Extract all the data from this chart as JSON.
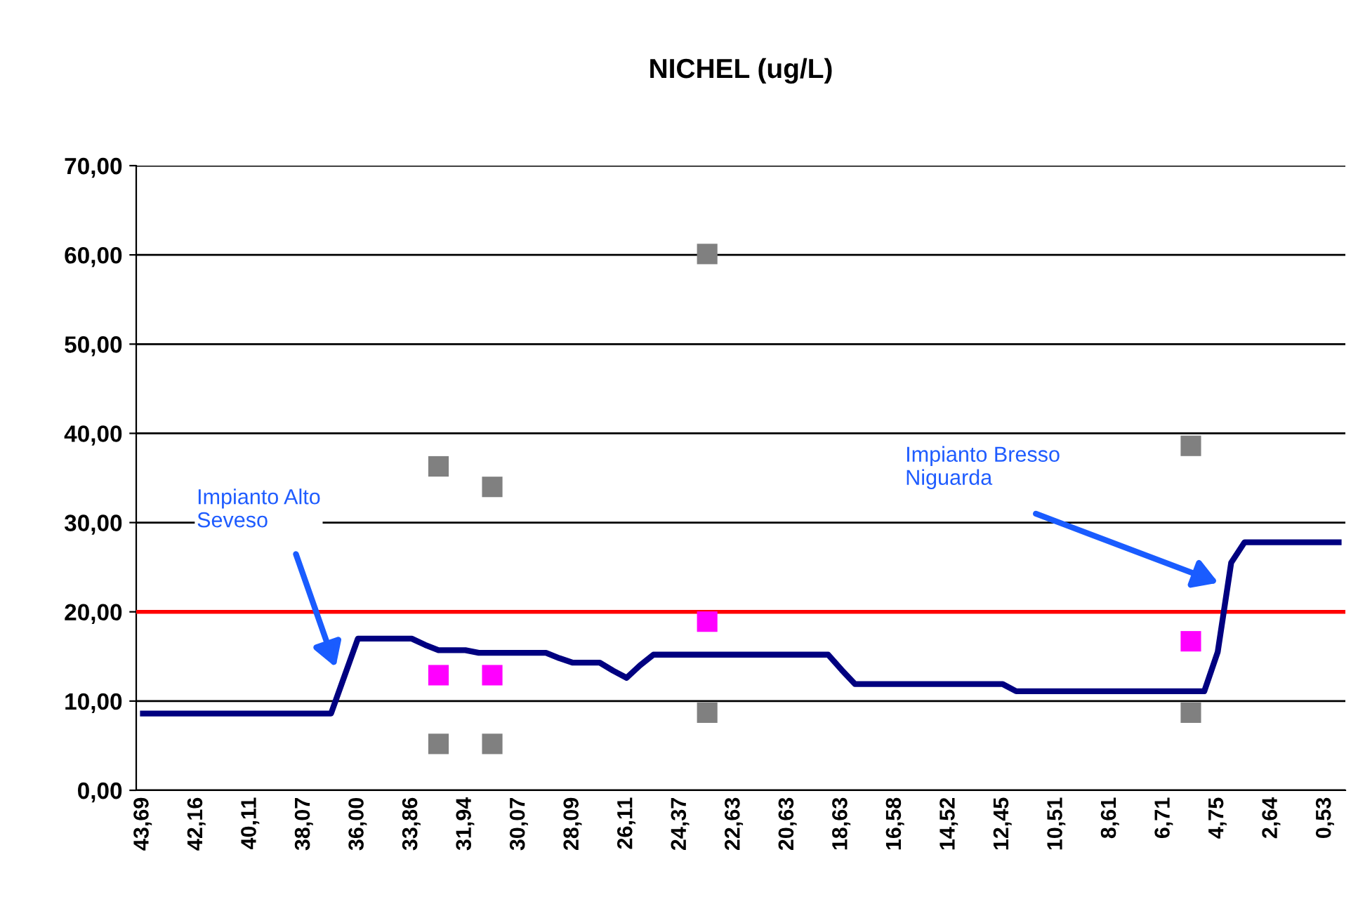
{
  "chart_data": {
    "type": "line",
    "title": "NICHEL (ug/L)",
    "categories": [
      "43,69",
      null,
      null,
      null,
      "42,16",
      null,
      null,
      null,
      "40,11",
      null,
      null,
      null,
      "38,07",
      null,
      null,
      null,
      "36,00",
      null,
      null,
      null,
      "33,86",
      null,
      null,
      null,
      "31,94",
      null,
      null,
      null,
      "30,07",
      null,
      null,
      null,
      "28,09",
      null,
      null,
      null,
      "26,11",
      null,
      null,
      null,
      "24,37",
      null,
      null,
      null,
      "22,63",
      null,
      null,
      null,
      "20,63",
      null,
      null,
      null,
      "18,63",
      null,
      null,
      null,
      "16,58",
      null,
      null,
      null,
      "14,52",
      null,
      null,
      null,
      "12,45",
      null,
      null,
      null,
      "10,51",
      null,
      null,
      null,
      "8,61",
      null,
      null,
      null,
      "6,71",
      null,
      null,
      null,
      "4,75",
      null,
      null,
      null,
      "2,64",
      null,
      null,
      null,
      "0,53",
      null
    ],
    "series": [
      {
        "color": "#000080",
        "marker": "none",
        "values": [
          8.6,
          8.6,
          8.6,
          8.6,
          8.6,
          8.6,
          8.6,
          8.6,
          8.6,
          8.6,
          8.6,
          8.6,
          8.6,
          8.6,
          8.6,
          12.8,
          17.0,
          17.0,
          17.0,
          17.0,
          17.0,
          16.3,
          15.7,
          15.7,
          15.7,
          15.4,
          15.4,
          15.4,
          15.4,
          15.4,
          15.4,
          14.8,
          14.3,
          14.3,
          14.3,
          13.4,
          12.6,
          14.0,
          15.2,
          15.2,
          15.2,
          15.2,
          15.2,
          15.2,
          15.2,
          15.2,
          15.2,
          15.2,
          15.2,
          15.2,
          15.2,
          15.2,
          13.5,
          11.9,
          11.9,
          11.9,
          11.9,
          11.9,
          11.9,
          11.9,
          11.9,
          11.9,
          11.9,
          11.9,
          11.9,
          11.1,
          11.1,
          11.1,
          11.1,
          11.1,
          11.1,
          11.1,
          11.1,
          11.1,
          11.1,
          11.1,
          11.1,
          11.1,
          11.1,
          11.1,
          15.5,
          25.5,
          27.8,
          27.8,
          27.8,
          27.8,
          27.8,
          27.8,
          27.8,
          27.8
        ]
      },
      {
        "type": "scatter",
        "color": "#808080",
        "marker": "square",
        "values": [
          null,
          null,
          null,
          null,
          null,
          null,
          null,
          null,
          null,
          null,
          null,
          null,
          null,
          null,
          null,
          null,
          null,
          null,
          null,
          null,
          null,
          null,
          36.3,
          null,
          null,
          null,
          34.0,
          null,
          null,
          null,
          null,
          null,
          null,
          null,
          null,
          null,
          null,
          null,
          null,
          null,
          null,
          null,
          60.1,
          null,
          null,
          null,
          null,
          null,
          null,
          null,
          null,
          null,
          null,
          null,
          null,
          null,
          null,
          null,
          null,
          null,
          null,
          null,
          null,
          null,
          null,
          null,
          null,
          null,
          null,
          null,
          null,
          null,
          null,
          null,
          null,
          null,
          null,
          null,
          38.6,
          null,
          null,
          null,
          null,
          null,
          null,
          null,
          null,
          null,
          null,
          null
        ]
      },
      {
        "type": "scatter",
        "color": "#808080",
        "marker": "square",
        "values": [
          null,
          null,
          null,
          null,
          null,
          null,
          null,
          null,
          null,
          null,
          null,
          null,
          null,
          null,
          null,
          null,
          null,
          null,
          null,
          null,
          null,
          null,
          5.2,
          null,
          null,
          null,
          5.2,
          null,
          null,
          null,
          null,
          null,
          null,
          null,
          null,
          null,
          null,
          null,
          null,
          null,
          null,
          null,
          8.7,
          null,
          null,
          null,
          null,
          null,
          null,
          null,
          null,
          null,
          null,
          null,
          null,
          null,
          null,
          null,
          null,
          null,
          null,
          null,
          null,
          null,
          null,
          null,
          null,
          null,
          null,
          null,
          null,
          null,
          null,
          null,
          null,
          null,
          null,
          null,
          8.7,
          null,
          null,
          null,
          null,
          null,
          null,
          null,
          null,
          null,
          null,
          null
        ]
      },
      {
        "type": "scatter",
        "color": "#ff00ff",
        "marker": "square",
        "values": [
          null,
          null,
          null,
          null,
          null,
          null,
          null,
          null,
          null,
          null,
          null,
          null,
          null,
          null,
          null,
          null,
          null,
          null,
          null,
          null,
          null,
          null,
          12.9,
          null,
          null,
          null,
          12.9,
          null,
          null,
          null,
          null,
          null,
          null,
          null,
          null,
          null,
          null,
          null,
          null,
          null,
          null,
          null,
          18.9,
          null,
          null,
          null,
          null,
          null,
          null,
          null,
          null,
          null,
          null,
          null,
          null,
          null,
          null,
          null,
          null,
          null,
          null,
          null,
          null,
          null,
          null,
          null,
          null,
          null,
          null,
          null,
          null,
          null,
          null,
          null,
          null,
          null,
          null,
          null,
          16.7,
          null,
          null,
          null,
          null,
          null,
          null,
          null,
          null,
          null,
          null,
          null
        ]
      }
    ],
    "ylim": [
      0,
      70
    ],
    "yticks": [
      {
        "value": 0,
        "label": "0,00"
      },
      {
        "value": 10,
        "label": "10,00"
      },
      {
        "value": 20,
        "label": "20,00"
      },
      {
        "value": 30,
        "label": "30,00"
      },
      {
        "value": 40,
        "label": "40,00"
      },
      {
        "value": 50,
        "label": "50,00"
      },
      {
        "value": 60,
        "label": "60,00"
      },
      {
        "value": 70,
        "label": "70,00"
      }
    ],
    "grid": "y",
    "ref_lines": [
      {
        "axis": "y",
        "value": 20,
        "color": "#ff0000"
      }
    ],
    "annotations": [
      "Impianto Alto\nSeveso",
      "Impianto Bresso\nNiguarda"
    ]
  }
}
